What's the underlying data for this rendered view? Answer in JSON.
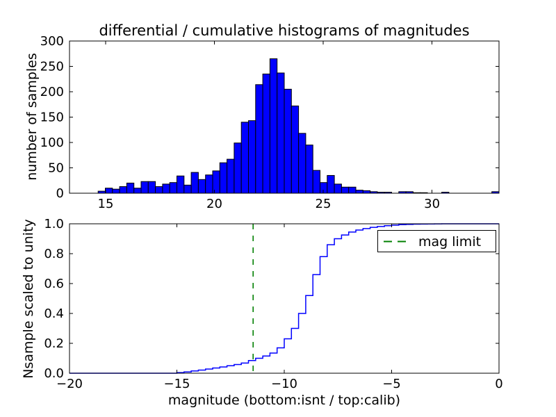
{
  "chart_data": [
    {
      "type": "bar",
      "subtype": "differential-histogram",
      "title": "differential / cumulative histograms of magnitudes",
      "xlabel": "",
      "ylabel": "number of samples",
      "xlim": [
        13.34,
        33.08
      ],
      "ylim": [
        0,
        300
      ],
      "grid": false,
      "bin_start": 13.34,
      "bin_width": 0.329,
      "bar_color": "#0000ff",
      "bar_edge_color": "#000000",
      "xticks": {
        "values": [
          15,
          20,
          25,
          30
        ],
        "labels": [
          "15",
          "20",
          "25",
          "30"
        ]
      },
      "yticks": {
        "values": [
          0,
          50,
          100,
          150,
          200,
          250,
          300
        ],
        "labels": [
          "0",
          "50",
          "100",
          "150",
          "200",
          "250",
          "300"
        ]
      },
      "values": [
        0,
        0,
        0,
        0,
        4,
        10,
        8,
        13,
        20,
        10,
        23,
        23,
        13,
        18,
        21,
        34,
        16,
        41,
        27,
        36,
        44,
        60,
        67,
        99,
        140,
        143,
        214,
        235,
        265,
        237,
        205,
        172,
        118,
        95,
        45,
        21,
        35,
        18,
        12,
        12,
        6,
        5,
        3,
        2,
        2,
        0,
        3,
        3,
        1,
        1,
        0,
        0,
        2,
        0,
        0,
        0,
        0,
        0,
        0,
        3
      ]
    },
    {
      "type": "line",
      "subtype": "cumulative-step-histogram",
      "title": "",
      "xlabel": "magnitude (bottom:isnt / top:calib)",
      "ylabel": "Nsample scaled to unity",
      "xlim": [
        -20,
        0
      ],
      "ylim": [
        0.0,
        1.0
      ],
      "grid": false,
      "bin_start": -20,
      "bin_width": 0.333333,
      "line_color": "#0000ff",
      "xticks": {
        "values": [
          -20,
          -15,
          -10,
          -5,
          0
        ],
        "labels": [
          "−20",
          "−15",
          "−10",
          "−5",
          "0"
        ]
      },
      "yticks": {
        "values": [
          0.0,
          0.2,
          0.4,
          0.6,
          0.8,
          1.0
        ],
        "labels": [
          "0.0",
          "0.2",
          "0.4",
          "0.6",
          "0.8",
          "1.0"
        ]
      },
      "cumulative": [
        0,
        0,
        0,
        0,
        0,
        0,
        0,
        0,
        0,
        0,
        0,
        0,
        0,
        0,
        0,
        0.004,
        0.009,
        0.015,
        0.021,
        0.028,
        0.035,
        0.042,
        0.05,
        0.058,
        0.068,
        0.085,
        0.1,
        0.115,
        0.135,
        0.17,
        0.23,
        0.3,
        0.4,
        0.52,
        0.66,
        0.78,
        0.86,
        0.9,
        0.925,
        0.945,
        0.958,
        0.968,
        0.976,
        0.982,
        0.987,
        0.991,
        0.994,
        0.996,
        0.9975,
        0.9985,
        0.999,
        0.9995,
        1,
        1,
        1,
        1,
        1,
        1,
        1,
        1
      ],
      "mag_limit": {
        "value": -11.45,
        "color": "#008000",
        "linestyle": "dashed",
        "label": "mag limit"
      },
      "legend": {
        "position": "upper right",
        "entries": [
          {
            "label": "mag limit",
            "color": "#008000",
            "linestyle": "dashed"
          }
        ]
      }
    }
  ]
}
